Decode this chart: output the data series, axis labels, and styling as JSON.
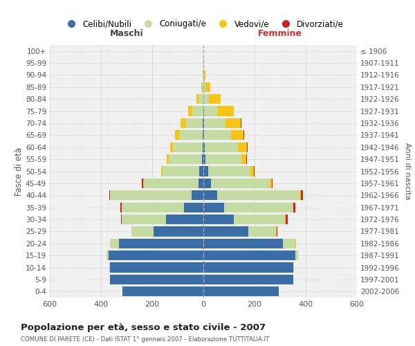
{
  "age_groups": [
    "0-4",
    "5-9",
    "10-14",
    "15-19",
    "20-24",
    "25-29",
    "30-34",
    "35-39",
    "40-44",
    "45-49",
    "50-54",
    "55-59",
    "60-64",
    "65-69",
    "70-74",
    "75-79",
    "80-84",
    "85-89",
    "90-94",
    "95-99",
    "100+"
  ],
  "birth_years": [
    "2002-2006",
    "1997-2001",
    "1992-1996",
    "1987-1991",
    "1982-1986",
    "1977-1981",
    "1972-1976",
    "1967-1971",
    "1962-1966",
    "1957-1961",
    "1952-1956",
    "1947-1951",
    "1942-1946",
    "1937-1941",
    "1932-1936",
    "1927-1931",
    "1922-1926",
    "1917-1921",
    "1912-1916",
    "1907-1911",
    "≤ 1906"
  ],
  "males": {
    "celibi": [
      315,
      365,
      365,
      370,
      330,
      195,
      145,
      75,
      45,
      18,
      15,
      5,
      4,
      2,
      2,
      0,
      0,
      0,
      0,
      0,
      0
    ],
    "coniugati": [
      0,
      1,
      3,
      8,
      35,
      85,
      175,
      245,
      320,
      215,
      145,
      130,
      115,
      90,
      65,
      42,
      18,
      5,
      2,
      0,
      0
    ],
    "vedovi": [
      0,
      0,
      0,
      0,
      0,
      0,
      0,
      0,
      1,
      2,
      4,
      8,
      12,
      18,
      22,
      18,
      8,
      2,
      0,
      0,
      0
    ],
    "divorziati": [
      0,
      0,
      0,
      0,
      0,
      2,
      2,
      5,
      2,
      5,
      2,
      0,
      0,
      0,
      0,
      0,
      0,
      0,
      0,
      0,
      0
    ]
  },
  "females": {
    "nubili": [
      295,
      350,
      350,
      360,
      310,
      175,
      120,
      80,
      55,
      30,
      20,
      8,
      5,
      3,
      2,
      2,
      0,
      0,
      0,
      0,
      0
    ],
    "coniugate": [
      0,
      1,
      4,
      10,
      50,
      110,
      200,
      270,
      320,
      230,
      165,
      140,
      130,
      105,
      85,
      52,
      22,
      8,
      3,
      1,
      0
    ],
    "vedove": [
      0,
      0,
      0,
      0,
      1,
      2,
      2,
      2,
      5,
      8,
      12,
      20,
      35,
      50,
      60,
      65,
      45,
      18,
      5,
      2,
      0
    ],
    "divorziate": [
      0,
      0,
      0,
      0,
      1,
      2,
      8,
      8,
      8,
      2,
      2,
      2,
      2,
      2,
      2,
      0,
      0,
      0,
      0,
      0,
      0
    ]
  },
  "colors": {
    "celibi": "#3a6ea5",
    "coniugati": "#c5dba4",
    "vedovi": "#f5c518",
    "divorziati": "#cc2222"
  },
  "title": "Popolazione per età, sesso e stato civile - 2007",
  "subtitle": "COMUNE DI PARETE (CE) - Dati ISTAT 1° gennaio 2007 - Elaborazione TUTTITALIA.IT",
  "xlabel_left": "Maschi",
  "xlabel_right": "Femmine",
  "ylabel_left": "Fasce di età",
  "ylabel_right": "Anni di nascita",
  "xlim": 600,
  "legend_labels": [
    "Celibi/Nubili",
    "Coniugati/e",
    "Vedovi/e",
    "Divorziati/e"
  ],
  "bg_color": "#f0f0f0",
  "grid_color": "#cccccc"
}
